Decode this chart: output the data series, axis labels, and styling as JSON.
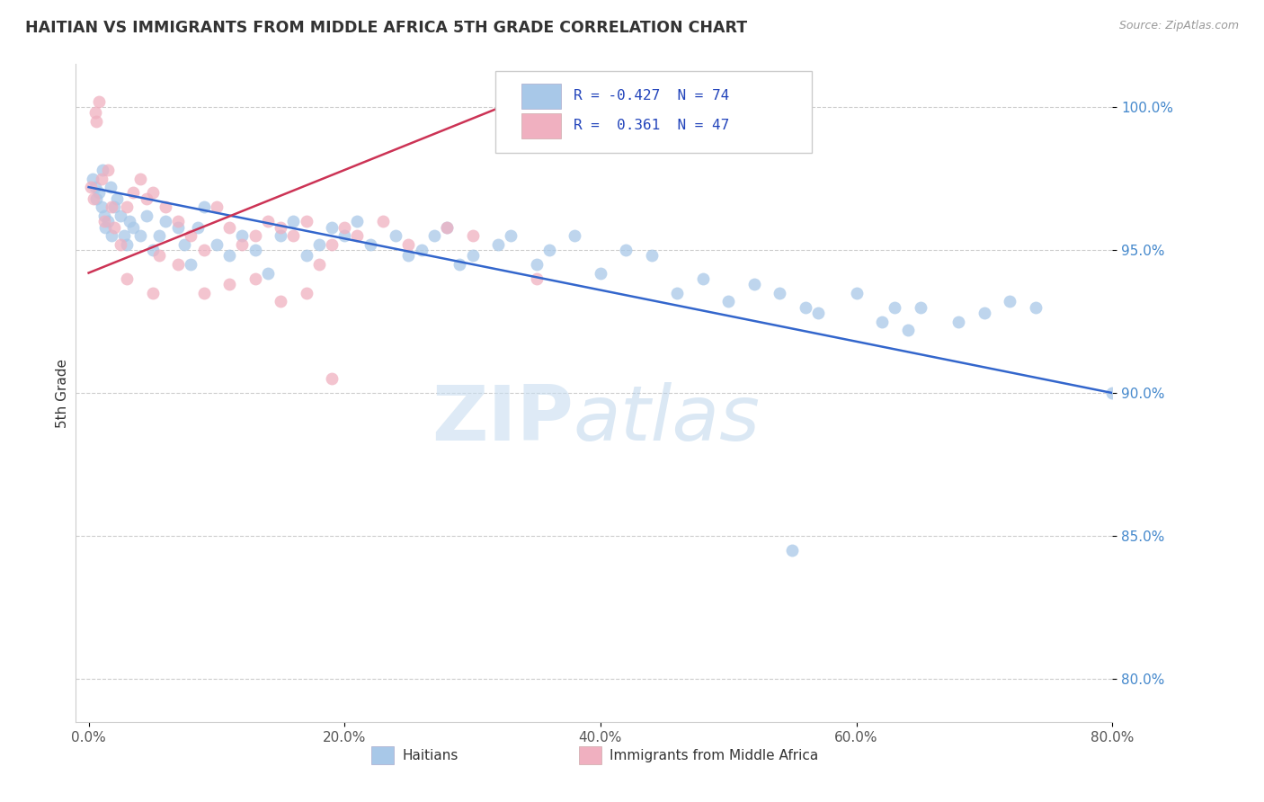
{
  "title": "HAITIAN VS IMMIGRANTS FROM MIDDLE AFRICA 5TH GRADE CORRELATION CHART",
  "source": "Source: ZipAtlas.com",
  "ylabel": "5th Grade",
  "xlabel_ticks": [
    "0.0%",
    "20.0%",
    "40.0%",
    "60.0%",
    "80.0%"
  ],
  "xlabel_vals": [
    0.0,
    20.0,
    40.0,
    60.0,
    80.0
  ],
  "ylabel_ticks": [
    "100.0%",
    "95.0%",
    "90.0%",
    "85.0%",
    "80.0%"
  ],
  "ylabel_vals": [
    100.0,
    95.0,
    90.0,
    85.0,
    80.0
  ],
  "xlim": [
    -1.0,
    80.0
  ],
  "ylim": [
    78.5,
    101.5
  ],
  "blue_color": "#a8c8e8",
  "pink_color": "#f0b0c0",
  "blue_line_color": "#3366cc",
  "pink_line_color": "#cc3355",
  "legend_blue_R": "-0.427",
  "legend_blue_N": "74",
  "legend_pink_R": "0.361",
  "legend_pink_N": "47",
  "blue_trend_x0": 0.0,
  "blue_trend_y0": 97.2,
  "blue_trend_x1": 80.0,
  "blue_trend_y1": 90.0,
  "pink_trend_x0": 0.0,
  "pink_trend_y0": 94.2,
  "pink_trend_x1": 35.0,
  "pink_trend_y1": 100.5,
  "blue_x": [
    0.3,
    0.5,
    0.6,
    0.8,
    1.0,
    1.1,
    1.2,
    1.3,
    1.5,
    1.7,
    1.8,
    2.0,
    2.2,
    2.5,
    2.8,
    3.0,
    3.2,
    3.5,
    4.0,
    4.5,
    5.0,
    5.5,
    6.0,
    7.0,
    7.5,
    8.0,
    8.5,
    9.0,
    10.0,
    11.0,
    12.0,
    13.0,
    14.0,
    15.0,
    16.0,
    17.0,
    18.0,
    19.0,
    20.0,
    21.0,
    22.0,
    24.0,
    25.0,
    26.0,
    27.0,
    28.0,
    29.0,
    30.0,
    32.0,
    33.0,
    35.0,
    36.0,
    38.0,
    40.0,
    42.0,
    44.0,
    46.0,
    48.0,
    50.0,
    52.0,
    54.0,
    56.0,
    57.0,
    60.0,
    65.0,
    68.0,
    70.0,
    72.0,
    74.0,
    55.0,
    62.0,
    63.0,
    64.0,
    80.0
  ],
  "blue_y": [
    97.5,
    97.2,
    96.8,
    97.0,
    96.5,
    97.8,
    96.2,
    95.8,
    96.0,
    97.2,
    95.5,
    96.5,
    96.8,
    96.2,
    95.5,
    95.2,
    96.0,
    95.8,
    95.5,
    96.2,
    95.0,
    95.5,
    96.0,
    95.8,
    95.2,
    94.5,
    95.8,
    96.5,
    95.2,
    94.8,
    95.5,
    95.0,
    94.2,
    95.5,
    96.0,
    94.8,
    95.2,
    95.8,
    95.5,
    96.0,
    95.2,
    95.5,
    94.8,
    95.0,
    95.5,
    95.8,
    94.5,
    94.8,
    95.2,
    95.5,
    94.5,
    95.0,
    95.5,
    94.2,
    95.0,
    94.8,
    93.5,
    94.0,
    93.2,
    93.8,
    93.5,
    93.0,
    92.8,
    93.5,
    93.0,
    92.5,
    92.8,
    93.2,
    93.0,
    84.5,
    92.5,
    93.0,
    92.2,
    90.0
  ],
  "pink_x": [
    0.2,
    0.4,
    0.5,
    0.6,
    0.8,
    1.0,
    1.2,
    1.5,
    1.8,
    2.0,
    2.5,
    3.0,
    3.5,
    4.0,
    4.5,
    5.0,
    5.5,
    6.0,
    7.0,
    8.0,
    9.0,
    10.0,
    11.0,
    12.0,
    13.0,
    14.0,
    15.0,
    16.0,
    17.0,
    18.0,
    19.0,
    20.0,
    21.0,
    23.0,
    25.0,
    28.0,
    30.0,
    35.0,
    3.0,
    5.0,
    7.0,
    9.0,
    11.0,
    13.0,
    15.0,
    17.0,
    19.0
  ],
  "pink_y": [
    97.2,
    96.8,
    99.8,
    99.5,
    100.2,
    97.5,
    96.0,
    97.8,
    96.5,
    95.8,
    95.2,
    96.5,
    97.0,
    97.5,
    96.8,
    97.0,
    94.8,
    96.5,
    96.0,
    95.5,
    95.0,
    96.5,
    95.8,
    95.2,
    95.5,
    96.0,
    95.8,
    95.5,
    96.0,
    94.5,
    95.2,
    95.8,
    95.5,
    96.0,
    95.2,
    95.8,
    95.5,
    94.0,
    94.0,
    93.5,
    94.5,
    93.5,
    93.8,
    94.0,
    93.2,
    93.5,
    90.5
  ]
}
